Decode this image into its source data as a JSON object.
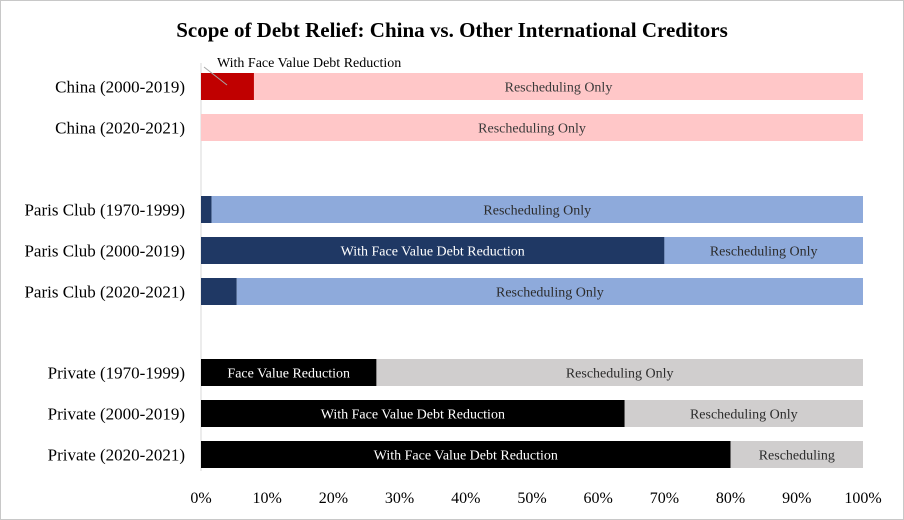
{
  "chart_data": {
    "type": "bar",
    "orientation": "horizontal",
    "stacked": true,
    "title": "Scope of Debt Relief: China vs. Other International  Creditors",
    "xlim": [
      0,
      100
    ],
    "x_ticks": [
      "0%",
      "10%",
      "20%",
      "30%",
      "40%",
      "50%",
      "60%",
      "70%",
      "80%",
      "90%",
      "100%"
    ],
    "grid": false,
    "legend": "none",
    "groups": [
      {
        "rows": [
          {
            "category": "China (2000-2019)",
            "segments": [
              {
                "value": 8,
                "color": "#c00000",
                "label": "",
                "label_color": "#ffffff"
              },
              {
                "value": 92,
                "color": "#ffc7c8",
                "label": "Rescheduling Only",
                "label_color": "#3a3a3a"
              }
            ],
            "callout": "With Face Value Debt Reduction"
          },
          {
            "category": "China (2020-2021)",
            "segments": [
              {
                "value": 100,
                "color": "#ffc7c8",
                "label": "Rescheduling Only",
                "label_color": "#3a3a3a"
              }
            ]
          }
        ]
      },
      {
        "rows": [
          {
            "category": "Paris Club (1970-1999)",
            "segments": [
              {
                "value": 1.6,
                "color": "#1f3864",
                "label": "",
                "label_color": "#ffffff"
              },
              {
                "value": 98.4,
                "color": "#8eaadb",
                "label": "Rescheduling Only",
                "label_color": "#2c2c2c"
              }
            ]
          },
          {
            "category": "Paris Club (2000-2019)",
            "segments": [
              {
                "value": 70,
                "color": "#1f3864",
                "label": "With Face Value Debt Reduction",
                "label_color": "#ffffff"
              },
              {
                "value": 30,
                "color": "#8eaadb",
                "label": "Rescheduling Only",
                "label_color": "#2c2c2c"
              }
            ]
          },
          {
            "category": "Paris Club (2020-2021)",
            "segments": [
              {
                "value": 5.4,
                "color": "#1f3864",
                "label": "",
                "label_color": "#ffffff"
              },
              {
                "value": 94.6,
                "color": "#8eaadb",
                "label": "Rescheduling Only",
                "label_color": "#2c2c2c"
              }
            ]
          }
        ]
      },
      {
        "rows": [
          {
            "category": "Private (1970-1999)",
            "segments": [
              {
                "value": 26.5,
                "color": "#000000",
                "label": "Face Value  Reduction",
                "label_color": "#ffffff"
              },
              {
                "value": 73.5,
                "color": "#d0cece",
                "label": "Rescheduling Only",
                "label_color": "#2c2c2c"
              }
            ]
          },
          {
            "category": "Private (2000-2019)",
            "segments": [
              {
                "value": 64,
                "color": "#000000",
                "label": "With Face Value Debt Reduction",
                "label_color": "#ffffff"
              },
              {
                "value": 36,
                "color": "#d0cece",
                "label": "Rescheduling Only",
                "label_color": "#2c2c2c"
              }
            ]
          },
          {
            "category": "Private (2020-2021)",
            "segments": [
              {
                "value": 80,
                "color": "#000000",
                "label": "With Face Value Debt Reduction",
                "label_color": "#ffffff"
              },
              {
                "value": 20,
                "color": "#d0cece",
                "label": "Rescheduling",
                "label_color": "#2c2c2c"
              }
            ]
          }
        ]
      }
    ]
  }
}
